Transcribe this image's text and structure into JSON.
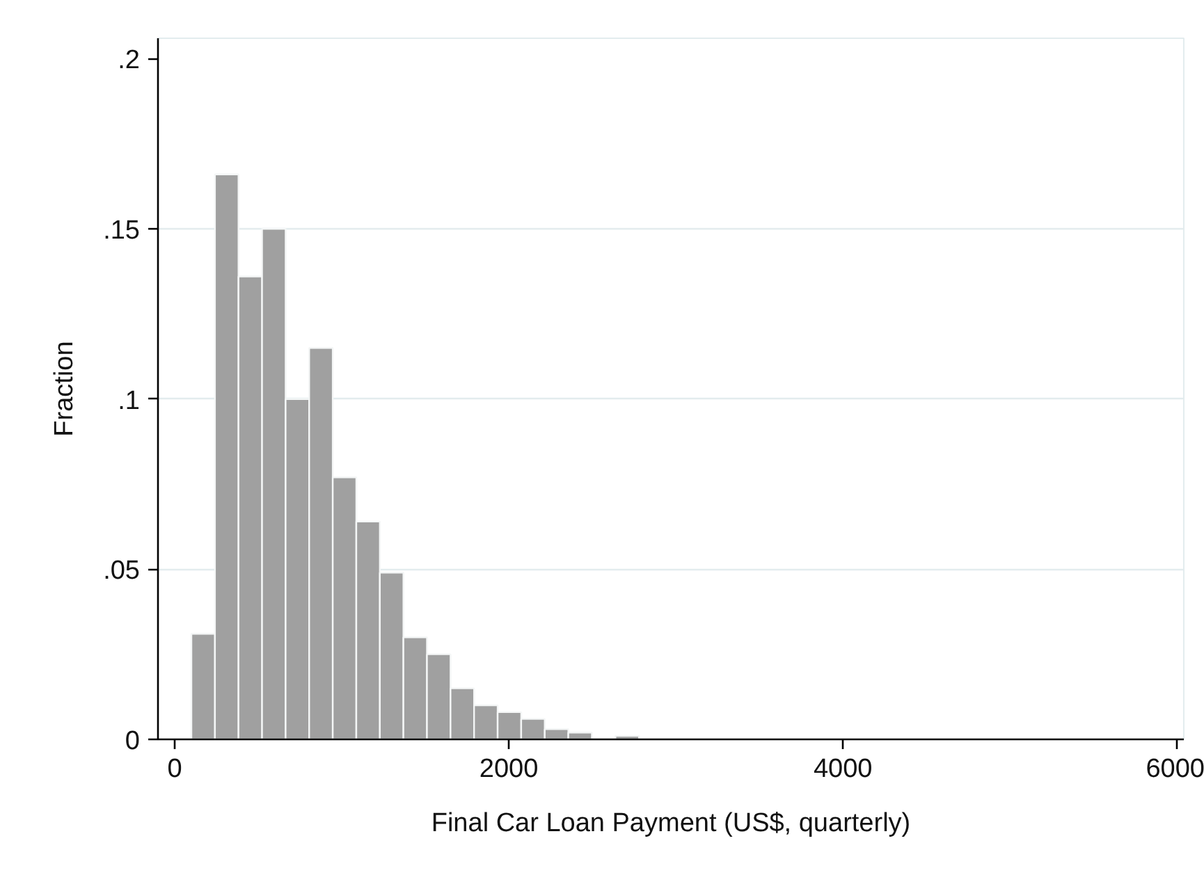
{
  "chart_data": {
    "type": "histogram",
    "xlabel": "Final Car Loan Payment (US$, quarterly)",
    "ylabel": "Fraction",
    "bins": [
      100,
      241,
      382,
      523,
      664,
      805,
      946,
      1087,
      1228,
      1369,
      1510,
      1651,
      1792,
      1933,
      2074,
      2215,
      2356,
      2497,
      2638,
      2779
    ],
    "values": [
      0.031,
      0.166,
      0.136,
      0.15,
      0.1,
      0.115,
      0.077,
      0.064,
      0.049,
      0.03,
      0.025,
      0.015,
      0.01,
      0.008,
      0.006,
      0.003,
      0.002,
      0,
      0.001
    ],
    "color": "#a0a0a0",
    "xlim": [
      -100,
      6040
    ],
    "ylim": [
      0,
      0.206
    ],
    "xticks": [
      0,
      2000,
      4000,
      6000
    ],
    "yticks": [
      0,
      {
        "value": 0.05,
        "label": ".05"
      },
      {
        "value": 0.1,
        "label": ".1"
      },
      {
        "value": 0.15,
        "label": ".15"
      },
      {
        "value": 0.2,
        "label": ".2"
      }
    ],
    "grid": "y"
  }
}
